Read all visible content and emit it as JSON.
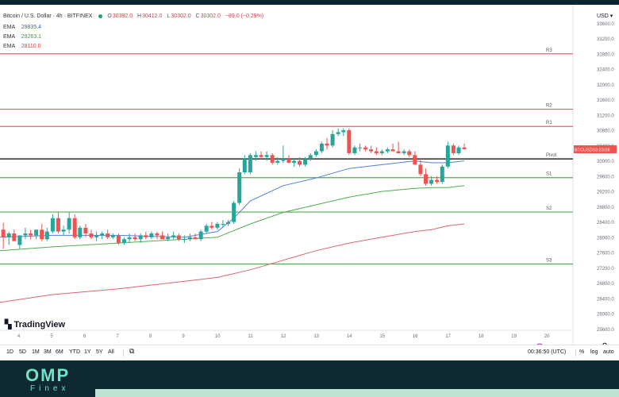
{
  "chart_header": {
    "symbol_title": "Bitcoin / U.S. Dollar · 4h · BITFINEX",
    "open_label": "O",
    "open": "30392.0",
    "high_label": "H",
    "high": "30412.0",
    "low_label": "L",
    "low": "30302.0",
    "close_label": "C",
    "close": "30302.0",
    "change": "−89.0 (−0.29%)"
  },
  "indicators": [
    {
      "label": "EMA",
      "value": "29835.4",
      "color": "#2962ff"
    },
    {
      "label": "EMA",
      "value": "29263.1",
      "color": "#2e9e3f"
    },
    {
      "label": "EMA",
      "value": "28110.0",
      "color": "#e23b45"
    }
  ],
  "currency": "USD",
  "price_tag": {
    "symbol": "BTCUSD",
    "countdown": "03:23:09"
  },
  "levels": [
    {
      "name": "R3",
      "price": 32800,
      "color": "#e06470"
    },
    {
      "name": "R2",
      "price": 31350,
      "color": "#e06470"
    },
    {
      "name": "R1",
      "price": 30900,
      "color": "#e06470"
    },
    {
      "name": "Pivot",
      "price": 30050,
      "color": "#000000"
    },
    {
      "name": "S1",
      "price": 29560,
      "color": "#4caf50"
    },
    {
      "name": "S2",
      "price": 28660,
      "color": "#4caf50"
    },
    {
      "name": "S3",
      "price": 27300,
      "color": "#4caf50"
    }
  ],
  "branding": {
    "logo_text": "TradingView",
    "footer_brand": "OMP",
    "footer_sub": "Finex"
  },
  "timeframes": [
    "1D",
    "5D",
    "1M",
    "3M",
    "6M",
    "YTD",
    "1Y",
    "5Y",
    "All"
  ],
  "clock": "00:36:50 (UTC)",
  "bottom_right": {
    "percent": "%",
    "log": "log",
    "auto": "auto"
  },
  "chart_data": {
    "type": "candlestick",
    "title": "Bitcoin / U.S. Dollar · 4h · BITFINEX",
    "ylim": [
      25400,
      34000
    ],
    "y_ticks": [
      25600,
      26000,
      26400,
      26800,
      27200,
      27600,
      28000,
      28400,
      28800,
      29200,
      29600,
      30000,
      30400,
      30800,
      31200,
      31600,
      32000,
      32400,
      32800,
      33200,
      33600
    ],
    "x_range": [
      3.4,
      20.8
    ],
    "x_ticks": [
      4,
      5,
      6,
      7,
      8,
      9,
      10,
      11,
      12,
      13,
      14,
      15,
      16,
      17,
      18,
      19,
      20
    ],
    "candles": [
      {
        "x": 3.5,
        "o": 28200,
        "h": 28380,
        "l": 27700,
        "c": 28000
      },
      {
        "x": 3.67,
        "o": 28000,
        "h": 28150,
        "l": 27800,
        "c": 28100
      },
      {
        "x": 3.83,
        "o": 28100,
        "h": 28200,
        "l": 27900,
        "c": 27900
      },
      {
        "x": 4.0,
        "o": 27800,
        "h": 28000,
        "l": 27700,
        "c": 28050
      },
      {
        "x": 4.17,
        "o": 28050,
        "h": 28250,
        "l": 27950,
        "c": 28100
      },
      {
        "x": 4.33,
        "o": 28100,
        "h": 28200,
        "l": 27950,
        "c": 28050
      },
      {
        "x": 4.5,
        "o": 28050,
        "h": 28150,
        "l": 27950,
        "c": 28200
      },
      {
        "x": 4.67,
        "o": 28200,
        "h": 28350,
        "l": 27900,
        "c": 27950
      },
      {
        "x": 4.83,
        "o": 27950,
        "h": 28250,
        "l": 27900,
        "c": 28150
      },
      {
        "x": 5.0,
        "o": 28150,
        "h": 28600,
        "l": 28100,
        "c": 28500
      },
      {
        "x": 5.17,
        "o": 28500,
        "h": 28650,
        "l": 28100,
        "c": 28150
      },
      {
        "x": 5.33,
        "o": 28150,
        "h": 28300,
        "l": 28050,
        "c": 28200
      },
      {
        "x": 5.5,
        "o": 28200,
        "h": 28650,
        "l": 28100,
        "c": 28500
      },
      {
        "x": 5.67,
        "o": 28500,
        "h": 28600,
        "l": 27950,
        "c": 28000
      },
      {
        "x": 5.83,
        "o": 28000,
        "h": 28300,
        "l": 27950,
        "c": 28250
      },
      {
        "x": 6.0,
        "o": 28250,
        "h": 28350,
        "l": 28000,
        "c": 28100
      },
      {
        "x": 6.17,
        "o": 28100,
        "h": 28200,
        "l": 27950,
        "c": 28000
      },
      {
        "x": 6.33,
        "o": 28000,
        "h": 28150,
        "l": 27900,
        "c": 28050
      },
      {
        "x": 6.5,
        "o": 28050,
        "h": 28150,
        "l": 27950,
        "c": 28100
      },
      {
        "x": 6.67,
        "o": 28100,
        "h": 28200,
        "l": 27950,
        "c": 28000
      },
      {
        "x": 6.83,
        "o": 28000,
        "h": 28100,
        "l": 27950,
        "c": 28050
      },
      {
        "x": 7.0,
        "o": 28050,
        "h": 28100,
        "l": 27800,
        "c": 27850
      },
      {
        "x": 7.17,
        "o": 27850,
        "h": 28000,
        "l": 27800,
        "c": 27950
      },
      {
        "x": 7.33,
        "o": 27950,
        "h": 28100,
        "l": 27850,
        "c": 28000
      },
      {
        "x": 7.5,
        "o": 28000,
        "h": 28100,
        "l": 27900,
        "c": 27950
      },
      {
        "x": 7.67,
        "o": 27950,
        "h": 28100,
        "l": 27850,
        "c": 28050
      },
      {
        "x": 7.83,
        "o": 28050,
        "h": 28150,
        "l": 27950,
        "c": 28000
      },
      {
        "x": 8.0,
        "o": 28000,
        "h": 28150,
        "l": 27950,
        "c": 28100
      },
      {
        "x": 8.17,
        "o": 28100,
        "h": 28150,
        "l": 27950,
        "c": 28050
      },
      {
        "x": 8.33,
        "o": 28050,
        "h": 28150,
        "l": 27950,
        "c": 27950
      },
      {
        "x": 8.5,
        "o": 27950,
        "h": 28100,
        "l": 27900,
        "c": 28000
      },
      {
        "x": 8.67,
        "o": 28000,
        "h": 28150,
        "l": 27950,
        "c": 28050
      },
      {
        "x": 8.83,
        "o": 28050,
        "h": 28100,
        "l": 27900,
        "c": 27950
      },
      {
        "x": 9.0,
        "o": 27950,
        "h": 28050,
        "l": 27850,
        "c": 27950
      },
      {
        "x": 9.17,
        "o": 27950,
        "h": 28100,
        "l": 27900,
        "c": 28000
      },
      {
        "x": 9.33,
        "o": 28000,
        "h": 28100,
        "l": 27950,
        "c": 27950
      },
      {
        "x": 9.5,
        "o": 27950,
        "h": 28200,
        "l": 27900,
        "c": 28150
      },
      {
        "x": 9.67,
        "o": 28150,
        "h": 28350,
        "l": 28100,
        "c": 28300
      },
      {
        "x": 9.83,
        "o": 28300,
        "h": 28400,
        "l": 28200,
        "c": 28250
      },
      {
        "x": 10.0,
        "o": 28250,
        "h": 28400,
        "l": 28200,
        "c": 28350
      },
      {
        "x": 10.17,
        "o": 28350,
        "h": 28450,
        "l": 28250,
        "c": 28350
      },
      {
        "x": 10.33,
        "o": 28350,
        "h": 28450,
        "l": 28300,
        "c": 28400
      },
      {
        "x": 10.5,
        "o": 28400,
        "h": 28950,
        "l": 28350,
        "c": 28900
      },
      {
        "x": 10.67,
        "o": 28900,
        "h": 29800,
        "l": 28850,
        "c": 29700
      },
      {
        "x": 10.83,
        "o": 29700,
        "h": 30150,
        "l": 29650,
        "c": 30050
      },
      {
        "x": 11.0,
        "o": 29700,
        "h": 30200,
        "l": 29650,
        "c": 30150
      },
      {
        "x": 11.17,
        "o": 30100,
        "h": 30250,
        "l": 30000,
        "c": 30150
      },
      {
        "x": 11.33,
        "o": 30150,
        "h": 30250,
        "l": 30050,
        "c": 30100
      },
      {
        "x": 11.5,
        "o": 30100,
        "h": 30250,
        "l": 30000,
        "c": 30150
      },
      {
        "x": 11.67,
        "o": 30150,
        "h": 30200,
        "l": 29900,
        "c": 29950
      },
      {
        "x": 11.83,
        "o": 29950,
        "h": 30100,
        "l": 29900,
        "c": 30000
      },
      {
        "x": 12.0,
        "o": 30000,
        "h": 30400,
        "l": 29950,
        "c": 30050
      },
      {
        "x": 12.17,
        "o": 30050,
        "h": 30150,
        "l": 29950,
        "c": 29950
      },
      {
        "x": 12.33,
        "o": 29950,
        "h": 30050,
        "l": 29850,
        "c": 30000
      },
      {
        "x": 12.5,
        "o": 30000,
        "h": 30100,
        "l": 29850,
        "c": 29900
      },
      {
        "x": 12.67,
        "o": 29900,
        "h": 30100,
        "l": 29850,
        "c": 30050
      },
      {
        "x": 12.83,
        "o": 30050,
        "h": 30200,
        "l": 30000,
        "c": 30150
      },
      {
        "x": 13.0,
        "o": 30150,
        "h": 30300,
        "l": 30100,
        "c": 30250
      },
      {
        "x": 13.17,
        "o": 30250,
        "h": 30500,
        "l": 30200,
        "c": 30450
      },
      {
        "x": 13.33,
        "o": 30450,
        "h": 30600,
        "l": 30300,
        "c": 30400
      },
      {
        "x": 13.5,
        "o": 30400,
        "h": 30800,
        "l": 30350,
        "c": 30700
      },
      {
        "x": 13.67,
        "o": 30700,
        "h": 30850,
        "l": 30650,
        "c": 30750
      },
      {
        "x": 13.83,
        "o": 30750,
        "h": 30850,
        "l": 30650,
        "c": 30800
      },
      {
        "x": 14.0,
        "o": 30800,
        "h": 30850,
        "l": 30150,
        "c": 30200
      },
      {
        "x": 14.17,
        "o": 30200,
        "h": 30400,
        "l": 30150,
        "c": 30350
      },
      {
        "x": 14.33,
        "o": 30350,
        "h": 30450,
        "l": 30250,
        "c": 30350
      },
      {
        "x": 14.5,
        "o": 30350,
        "h": 30400,
        "l": 30250,
        "c": 30300
      },
      {
        "x": 14.67,
        "o": 30300,
        "h": 30400,
        "l": 30200,
        "c": 30250
      },
      {
        "x": 14.83,
        "o": 30250,
        "h": 30350,
        "l": 30150,
        "c": 30200
      },
      {
        "x": 15.0,
        "o": 30200,
        "h": 30300,
        "l": 30150,
        "c": 30250
      },
      {
        "x": 15.17,
        "o": 30250,
        "h": 30350,
        "l": 30200,
        "c": 30300
      },
      {
        "x": 15.33,
        "o": 30300,
        "h": 30450,
        "l": 30250,
        "c": 30250
      },
      {
        "x": 15.5,
        "o": 30250,
        "h": 30500,
        "l": 30200,
        "c": 30200
      },
      {
        "x": 15.67,
        "o": 30200,
        "h": 30300,
        "l": 30150,
        "c": 30250
      },
      {
        "x": 15.83,
        "o": 30250,
        "h": 30300,
        "l": 30100,
        "c": 30150
      },
      {
        "x": 16.0,
        "o": 30150,
        "h": 30250,
        "l": 29900,
        "c": 29900
      },
      {
        "x": 16.17,
        "o": 29900,
        "h": 30050,
        "l": 29600,
        "c": 29650
      },
      {
        "x": 16.33,
        "o": 29650,
        "h": 29800,
        "l": 29350,
        "c": 29400
      },
      {
        "x": 16.5,
        "o": 29400,
        "h": 29600,
        "l": 29350,
        "c": 29500
      },
      {
        "x": 16.67,
        "o": 29500,
        "h": 29600,
        "l": 29400,
        "c": 29450
      },
      {
        "x": 16.83,
        "o": 29450,
        "h": 29900,
        "l": 29400,
        "c": 29850
      },
      {
        "x": 17.0,
        "o": 29850,
        "h": 30500,
        "l": 29800,
        "c": 30400
      },
      {
        "x": 17.17,
        "o": 30400,
        "h": 30450,
        "l": 30150,
        "c": 30200
      },
      {
        "x": 17.33,
        "o": 30200,
        "h": 30400,
        "l": 30150,
        "c": 30350
      },
      {
        "x": 17.5,
        "o": 30350,
        "h": 30450,
        "l": 30300,
        "c": 30302
      }
    ],
    "series": [
      {
        "name": "EMA",
        "color": "#4f7fe6",
        "x": [
          3.4,
          5,
          7,
          9,
          10,
          10.5,
          11,
          12,
          13,
          14,
          15,
          16,
          16.5,
          17,
          17.5
        ],
        "y": [
          28000,
          28050,
          28050,
          28000,
          28150,
          28500,
          28950,
          29350,
          29550,
          29800,
          29900,
          30000,
          29950,
          29950,
          30000
        ]
      },
      {
        "name": "EMA",
        "color": "#4caf50",
        "x": [
          3.4,
          5,
          7,
          9,
          10,
          11,
          12,
          13,
          14,
          15,
          16,
          16.5,
          17,
          17.5
        ],
        "y": [
          27650,
          27750,
          27850,
          27950,
          28000,
          28350,
          28650,
          28850,
          29050,
          29200,
          29280,
          29300,
          29300,
          29350
        ]
      },
      {
        "name": "EMA",
        "color": "#e06470",
        "x": [
          3.4,
          5,
          7,
          9,
          10,
          11,
          12,
          13,
          14,
          15,
          16,
          16.5,
          17,
          17.5
        ],
        "y": [
          26300,
          26500,
          26650,
          26850,
          26950,
          27150,
          27400,
          27650,
          27850,
          28000,
          28150,
          28200,
          28300,
          28350
        ]
      }
    ]
  }
}
